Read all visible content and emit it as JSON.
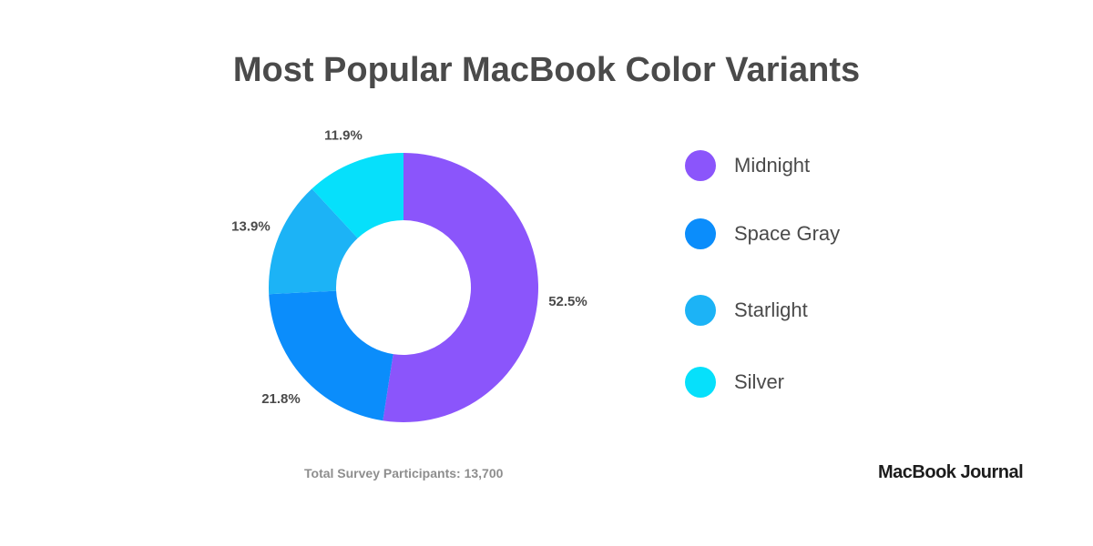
{
  "chart_data": {
    "type": "pie",
    "title": "Most Popular MacBook Color Variants",
    "donut": true,
    "legend_position": "right",
    "slices": [
      {
        "name": "Midnight",
        "value": 52.5,
        "label": "52.5%",
        "color": "#8b55fb"
      },
      {
        "name": "Space Gray",
        "value": 21.8,
        "label": "21.8%",
        "color": "#0b8dfb"
      },
      {
        "name": "Starlight",
        "value": 13.9,
        "label": "13.9%",
        "color": "#1cb3f6"
      },
      {
        "name": "Silver",
        "value": 11.9,
        "label": "11.9%",
        "color": "#06e0fb"
      }
    ]
  },
  "footer": {
    "note": "Total Survey Participants: 13,700",
    "brand": "MacBook Journal"
  }
}
